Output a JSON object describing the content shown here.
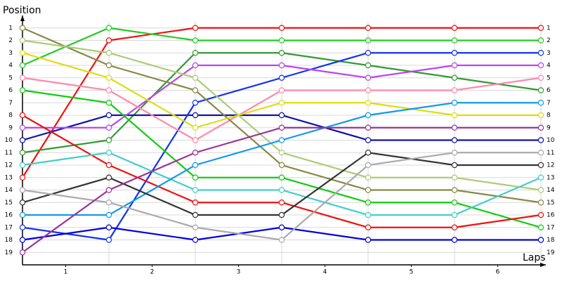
{
  "chart_data": {
    "type": "line",
    "y_label": "Position",
    "x_label": "Laps",
    "x": [
      0,
      1,
      2,
      3,
      4,
      5,
      6
    ],
    "xlim": [
      0,
      6
    ],
    "xticks": [
      {
        "value": 0.5,
        "label": "1"
      },
      {
        "value": 1.5,
        "label": "2"
      },
      {
        "value": 2.5,
        "label": "3"
      },
      {
        "value": 3.5,
        "label": "4"
      },
      {
        "value": 4.5,
        "label": "5"
      },
      {
        "value": 5.5,
        "label": "6"
      }
    ],
    "ylim": [
      20,
      0
    ],
    "yticks": [
      1,
      2,
      3,
      4,
      5,
      6,
      7,
      8,
      9,
      10,
      11,
      12,
      13,
      14,
      15,
      16,
      17,
      18,
      19
    ],
    "grid": true,
    "series": [
      {
        "color": "#ee1111",
        "values": [
          13,
          2,
          1,
          1,
          1,
          1,
          1
        ]
      },
      {
        "color": "#22cc22",
        "values": [
          4,
          1,
          2,
          2,
          2,
          2,
          2
        ]
      },
      {
        "color": "#339933",
        "values": [
          11,
          10,
          3,
          3,
          4,
          5,
          6
        ]
      },
      {
        "color": "#1111aa",
        "values": [
          10,
          8,
          8,
          8,
          10,
          10,
          10
        ]
      },
      {
        "color": "#1133ee",
        "values": [
          17,
          18,
          7,
          5,
          3,
          3,
          3
        ]
      },
      {
        "color": "#0000dd",
        "values": [
          18,
          17,
          18,
          17,
          18,
          18,
          18
        ]
      },
      {
        "color": "#bb44ee",
        "values": [
          9,
          9,
          4,
          4,
          5,
          4,
          4
        ]
      },
      {
        "color": "#ff88aa",
        "values": [
          5,
          6,
          10,
          6,
          6,
          6,
          5
        ]
      },
      {
        "color": "#888844",
        "values": [
          1,
          4,
          6,
          12,
          14,
          14,
          15
        ]
      },
      {
        "color": "#aacc77",
        "values": [
          2,
          3,
          5,
          11,
          13,
          13,
          14
        ]
      },
      {
        "color": "#dddd11",
        "values": [
          3,
          5,
          9,
          7,
          7,
          8,
          8
        ]
      },
      {
        "color": "#11cc11",
        "values": [
          6,
          7,
          13,
          13,
          15,
          15,
          17
        ]
      },
      {
        "color": "#ee1111",
        "values": [
          8,
          12,
          15,
          15,
          17,
          17,
          16
        ]
      },
      {
        "color": "#44cccc",
        "values": [
          12,
          11,
          14,
          14,
          16,
          16,
          13
        ]
      },
      {
        "color": "#1199ee",
        "values": [
          16,
          16,
          12,
          10,
          8,
          7,
          7
        ]
      },
      {
        "color": "#333333",
        "values": [
          15,
          13,
          16,
          16,
          11,
          12,
          12
        ]
      },
      {
        "color": "#aaaaaa",
        "values": [
          14,
          15,
          17,
          18,
          12,
          11,
          11
        ]
      },
      {
        "color": "#993399",
        "values": [
          19,
          14,
          11,
          9,
          9,
          9,
          9
        ]
      }
    ]
  }
}
